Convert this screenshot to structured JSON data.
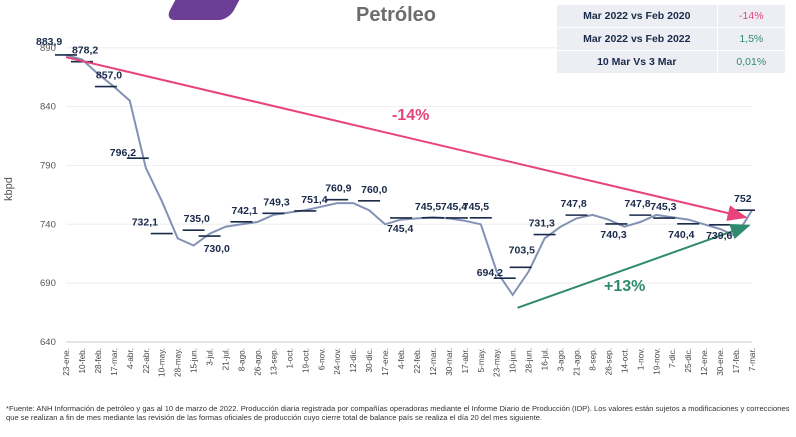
{
  "title": "Petróleo",
  "summary_table": [
    {
      "label": "Mar 2022 vs Feb 2020",
      "value": "-14%",
      "color": "#e8437a"
    },
    {
      "label": "Mar 2022 vs Feb 2022",
      "value": "1,5%",
      "color": "#2e8b6e"
    },
    {
      "label": "10 Mar Vs 3 Mar",
      "value": "0,01%",
      "color": "#2e8b6e"
    }
  ],
  "chart_data": {
    "type": "line",
    "ylabel": "kbpd",
    "ylim": [
      640,
      900
    ],
    "yticks": [
      640,
      690,
      740,
      790,
      840,
      890
    ],
    "categories": [
      "23-ene.",
      "10-feb.",
      "28-feb.",
      "17-mar.",
      "4-abr.",
      "22-abr.",
      "10-may.",
      "28-may.",
      "15-jun.",
      "3-jul.",
      "21-jul.",
      "8-ago.",
      "26-ago.",
      "13-sep.",
      "1-oct.",
      "19-oct.",
      "6-nov.",
      "24-nov.",
      "12-dic.",
      "30-dic.",
      "17-ene.",
      "4-feb.",
      "22-feb.",
      "12-mar.",
      "30-mar.",
      "17-abr.",
      "5-may.",
      "23-may.",
      "10-jun.",
      "28-jun.",
      "16-jul.",
      "3-ago.",
      "21-ago.",
      "8-sep.",
      "26-sep.",
      "14-oct.",
      "1-nov.",
      "19-nov.",
      "7-dic.",
      "25-dic.",
      "12-ene.",
      "30-ene.",
      "17-feb.",
      "7-mar."
    ],
    "series": [
      {
        "color": "#8391b4",
        "values": [
          883.9,
          880,
          868,
          857,
          845,
          788,
          760,
          728,
          722,
          732,
          738,
          740,
          742,
          748,
          750,
          752,
          755,
          758,
          758,
          752,
          740,
          744,
          745,
          746,
          745,
          743,
          740,
          700,
          680,
          700,
          728,
          738,
          745,
          748,
          744,
          738,
          742,
          748,
          746,
          744,
          740,
          736,
          730,
          752
        ]
      }
    ],
    "monthly_averages": [
      {
        "label": "883,9",
        "value": 883.9
      },
      {
        "label": "878,2",
        "value": 878.2
      },
      {
        "label": "857,0",
        "value": 857.0
      },
      {
        "label": "796,2",
        "value": 796.2
      },
      {
        "label": "732,1",
        "value": 732.1
      },
      {
        "label": "735,0",
        "value": 735.0
      },
      {
        "label": "730,0",
        "value": 730.0
      },
      {
        "label": "742,1",
        "value": 742.1
      },
      {
        "label": "749,3",
        "value": 749.3
      },
      {
        "label": "751,4",
        "value": 751.4
      },
      {
        "label": "760,9",
        "value": 760.9
      },
      {
        "label": "760,0",
        "value": 760.0
      },
      {
        "label": "745,4",
        "value": 745.4
      },
      {
        "label": "745,5",
        "value": 745.5
      },
      {
        "label": "745,4",
        "value": 745.4
      },
      {
        "label": "745,5",
        "value": 745.5
      },
      {
        "label": "694,2",
        "value": 694.2
      },
      {
        "label": "703,5",
        "value": 703.5
      },
      {
        "label": "731,3",
        "value": 731.3
      },
      {
        "label": "747,8",
        "value": 747.8
      },
      {
        "label": "740,3",
        "value": 740.3
      },
      {
        "label": "747,8",
        "value": 747.8
      },
      {
        "label": "745,3",
        "value": 745.3
      },
      {
        "label": "740,4",
        "value": 740.4
      },
      {
        "label": "739,6",
        "value": 739.6
      },
      {
        "label": "752",
        "value": 752
      }
    ],
    "trend_annotations": [
      {
        "label": "-14%",
        "color": "#e8437a"
      },
      {
        "label": "+13%",
        "color": "#2e8b6e"
      }
    ]
  },
  "footnote": "*Fuente: ANH Información de petróleo y gas al 10 de marzo de 2022. Producción diaria registrada por compañías operadoras mediante el Informe Diario de Producción (IDP). Los valores están sujetos a modificaciones y correcciones que se realizan a fin de mes mediante las revisión de las formas oficiales de producción cuyo cierre total de balance país se realiza el día 20 del mes siguiente."
}
